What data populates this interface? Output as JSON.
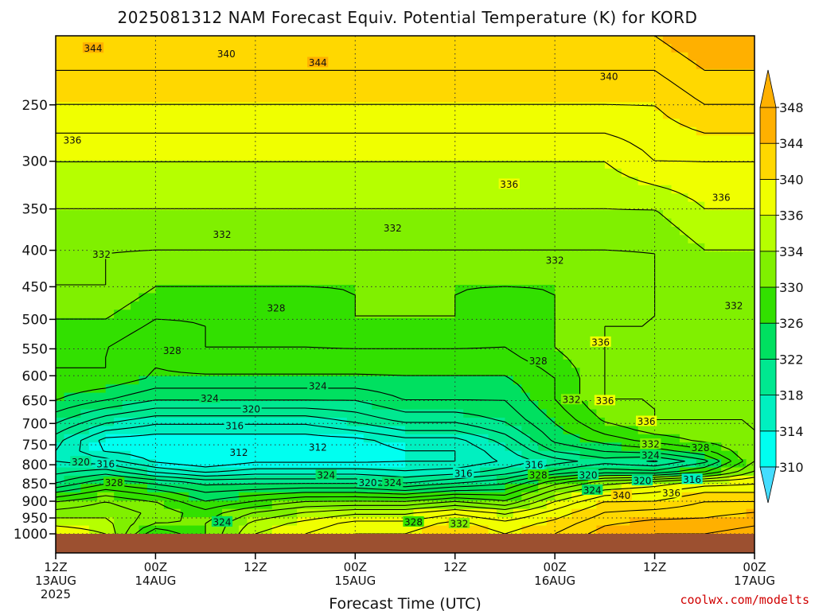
{
  "chart_data": {
    "type": "heatmap",
    "title": "2025081312 NAM Forecast Equiv. Potential Temperature (K) for KORD",
    "xlabel": "Forecast Time (UTC)",
    "ylabel": "",
    "y_scale": "log-pressure",
    "y_inverted": true,
    "ylim": [
      1000,
      200
    ],
    "x_ticks": [
      {
        "h": 0,
        "line1": "12Z",
        "line2": "13AUG",
        "line3": "2025"
      },
      {
        "h": 12,
        "line1": "00Z",
        "line2": "14AUG",
        "line3": ""
      },
      {
        "h": 24,
        "line1": "12Z",
        "line2": "",
        "line3": ""
      },
      {
        "h": 36,
        "line1": "00Z",
        "line2": "15AUG",
        "line3": ""
      },
      {
        "h": 48,
        "line1": "12Z",
        "line2": "",
        "line3": ""
      },
      {
        "h": 60,
        "line1": "00Z",
        "line2": "16AUG",
        "line3": ""
      },
      {
        "h": 72,
        "line1": "12Z",
        "line2": "",
        "line3": ""
      },
      {
        "h": 84,
        "line1": "00Z",
        "line2": "17AUG",
        "line3": ""
      }
    ],
    "xlim": [
      0,
      84
    ],
    "y_ticks": [
      "250",
      "300",
      "350",
      "400",
      "450",
      "500",
      "550",
      "600",
      "650",
      "700",
      "750",
      "800",
      "850",
      "900",
      "950",
      "1000"
    ],
    "colorbar": {
      "levels": [
        310,
        314,
        318,
        322,
        326,
        330,
        334,
        336,
        340,
        344,
        348
      ],
      "labels": [
        "310",
        "314",
        "318",
        "322",
        "326",
        "330",
        "334",
        "336",
        "340",
        "344",
        "348"
      ],
      "colors": [
        "#44ddff",
        "#00fff0",
        "#00f0c0",
        "#00e890",
        "#00e060",
        "#32e000",
        "#80f000",
        "#b6ff00",
        "#f0ff00",
        "#ffd800",
        "#ffb000"
      ]
    },
    "grid": true,
    "ground_color": "#9c5030",
    "profile_times_h": [
      0,
      6,
      12,
      18,
      24,
      30,
      36,
      42,
      48,
      54,
      60,
      66,
      72,
      78,
      84
    ],
    "profile_levels_hpa": [
      1000,
      950,
      900,
      850,
      800,
      750,
      700,
      650,
      600,
      550,
      500,
      450,
      400,
      350,
      300,
      250,
      200
    ],
    "theta_e_k": [
      [
        338,
        336,
        326,
        330,
        336,
        338,
        340,
        340,
        342,
        340,
        342,
        345,
        346,
        346,
        347
      ],
      [
        334,
        334,
        332,
        330,
        334,
        336,
        338,
        338,
        340,
        338,
        340,
        343,
        344,
        344,
        345
      ],
      [
        330,
        332,
        330,
        326,
        328,
        330,
        330,
        330,
        332,
        330,
        336,
        340,
        340,
        342,
        342
      ],
      [
        322,
        326,
        324,
        322,
        322,
        322,
        322,
        320,
        322,
        324,
        330,
        334,
        336,
        338,
        338
      ],
      [
        318,
        318,
        314,
        312,
        314,
        314,
        314,
        314,
        314,
        316,
        318,
        320,
        318,
        322,
        332
      ],
      [
        318,
        312,
        312,
        312,
        312,
        312,
        312,
        314,
        314,
        318,
        324,
        326,
        328,
        330,
        332
      ],
      [
        322,
        318,
        316,
        316,
        316,
        316,
        318,
        320,
        320,
        322,
        326,
        330,
        332,
        332,
        332
      ],
      [
        326,
        324,
        322,
        322,
        322,
        322,
        322,
        324,
        324,
        324,
        328,
        332,
        332,
        332,
        332
      ],
      [
        328,
        328,
        326,
        326,
        326,
        326,
        326,
        326,
        326,
        326,
        328,
        332,
        332,
        332,
        332
      ],
      [
        328,
        328,
        326,
        328,
        328,
        328,
        328,
        328,
        328,
        328,
        330,
        332,
        332,
        332,
        332
      ],
      [
        330,
        330,
        328,
        328,
        328,
        328,
        330,
        330,
        330,
        328,
        330,
        332,
        332,
        332,
        332
      ],
      [
        332,
        332,
        330,
        330,
        330,
        330,
        330,
        330,
        330,
        330,
        330,
        330,
        332,
        332,
        332
      ],
      [
        332,
        332,
        332,
        332,
        332,
        332,
        332,
        332,
        332,
        332,
        332,
        332,
        332,
        334,
        334
      ],
      [
        334,
        334,
        334,
        334,
        334,
        334,
        334,
        334,
        334,
        334,
        334,
        334,
        334,
        336,
        336
      ],
      [
        336,
        336,
        336,
        336,
        336,
        336,
        336,
        336,
        336,
        336,
        336,
        336,
        338,
        338,
        338
      ],
      [
        340,
        340,
        340,
        340,
        340,
        340,
        340,
        340,
        340,
        340,
        340,
        340,
        340,
        342,
        342
      ],
      [
        344,
        344,
        344,
        344,
        344,
        344,
        344,
        344,
        344,
        344,
        344,
        344,
        344,
        346,
        346
      ]
    ],
    "contour_labels": [
      {
        "text": "344",
        "h": 4.5,
        "p": 208
      },
      {
        "text": "340",
        "h": 20.5,
        "p": 212
      },
      {
        "text": "344",
        "h": 31.5,
        "p": 218
      },
      {
        "text": "340",
        "h": 66.5,
        "p": 228
      },
      {
        "text": "336",
        "h": 2.0,
        "p": 280
      },
      {
        "text": "336",
        "h": 54.5,
        "p": 323
      },
      {
        "text": "336",
        "h": 80.0,
        "p": 337
      },
      {
        "text": "332",
        "h": 20.0,
        "p": 380
      },
      {
        "text": "332",
        "h": 40.5,
        "p": 372
      },
      {
        "text": "332",
        "h": 5.5,
        "p": 405
      },
      {
        "text": "332",
        "h": 60.0,
        "p": 413
      },
      {
        "text": "332",
        "h": 81.5,
        "p": 478
      },
      {
        "text": "328",
        "h": 26.5,
        "p": 482
      },
      {
        "text": "336",
        "h": 65.5,
        "p": 538
      },
      {
        "text": "328",
        "h": 14.0,
        "p": 553
      },
      {
        "text": "328",
        "h": 58.0,
        "p": 572
      },
      {
        "text": "324",
        "h": 31.5,
        "p": 620
      },
      {
        "text": "324",
        "h": 18.5,
        "p": 645
      },
      {
        "text": "332",
        "h": 62.0,
        "p": 648
      },
      {
        "text": "336",
        "h": 66.0,
        "p": 650
      },
      {
        "text": "320",
        "h": 23.5,
        "p": 668
      },
      {
        "text": "336",
        "h": 71.0,
        "p": 695
      },
      {
        "text": "316",
        "h": 21.5,
        "p": 705
      },
      {
        "text": "332",
        "h": 71.5,
        "p": 748
      },
      {
        "text": "312",
        "h": 31.5,
        "p": 756
      },
      {
        "text": "312",
        "h": 22.0,
        "p": 768
      },
      {
        "text": "324",
        "h": 71.5,
        "p": 775
      },
      {
        "text": "328",
        "h": 77.5,
        "p": 757
      },
      {
        "text": "320",
        "h": 3.0,
        "p": 792
      },
      {
        "text": "316",
        "h": 6.0,
        "p": 798
      },
      {
        "text": "316",
        "h": 57.5,
        "p": 800
      },
      {
        "text": "316",
        "h": 49.0,
        "p": 822
      },
      {
        "text": "324",
        "h": 32.5,
        "p": 827
      },
      {
        "text": "328",
        "h": 58.0,
        "p": 827
      },
      {
        "text": "320",
        "h": 64.0,
        "p": 827
      },
      {
        "text": "316",
        "h": 76.5,
        "p": 838
      },
      {
        "text": "320",
        "h": 70.5,
        "p": 842
      },
      {
        "text": "328",
        "h": 7.0,
        "p": 847
      },
      {
        "text": "320",
        "h": 37.5,
        "p": 847
      },
      {
        "text": "324",
        "h": 40.5,
        "p": 847
      },
      {
        "text": "324",
        "h": 64.5,
        "p": 868
      },
      {
        "text": "336",
        "h": 74.0,
        "p": 876
      },
      {
        "text": "340",
        "h": 68.0,
        "p": 883
      },
      {
        "text": "324",
        "h": 20.0,
        "p": 962
      },
      {
        "text": "328",
        "h": 43.0,
        "p": 962
      },
      {
        "text": "332",
        "h": 48.5,
        "p": 967
      }
    ]
  },
  "credit": "coolwx.com/modelts"
}
